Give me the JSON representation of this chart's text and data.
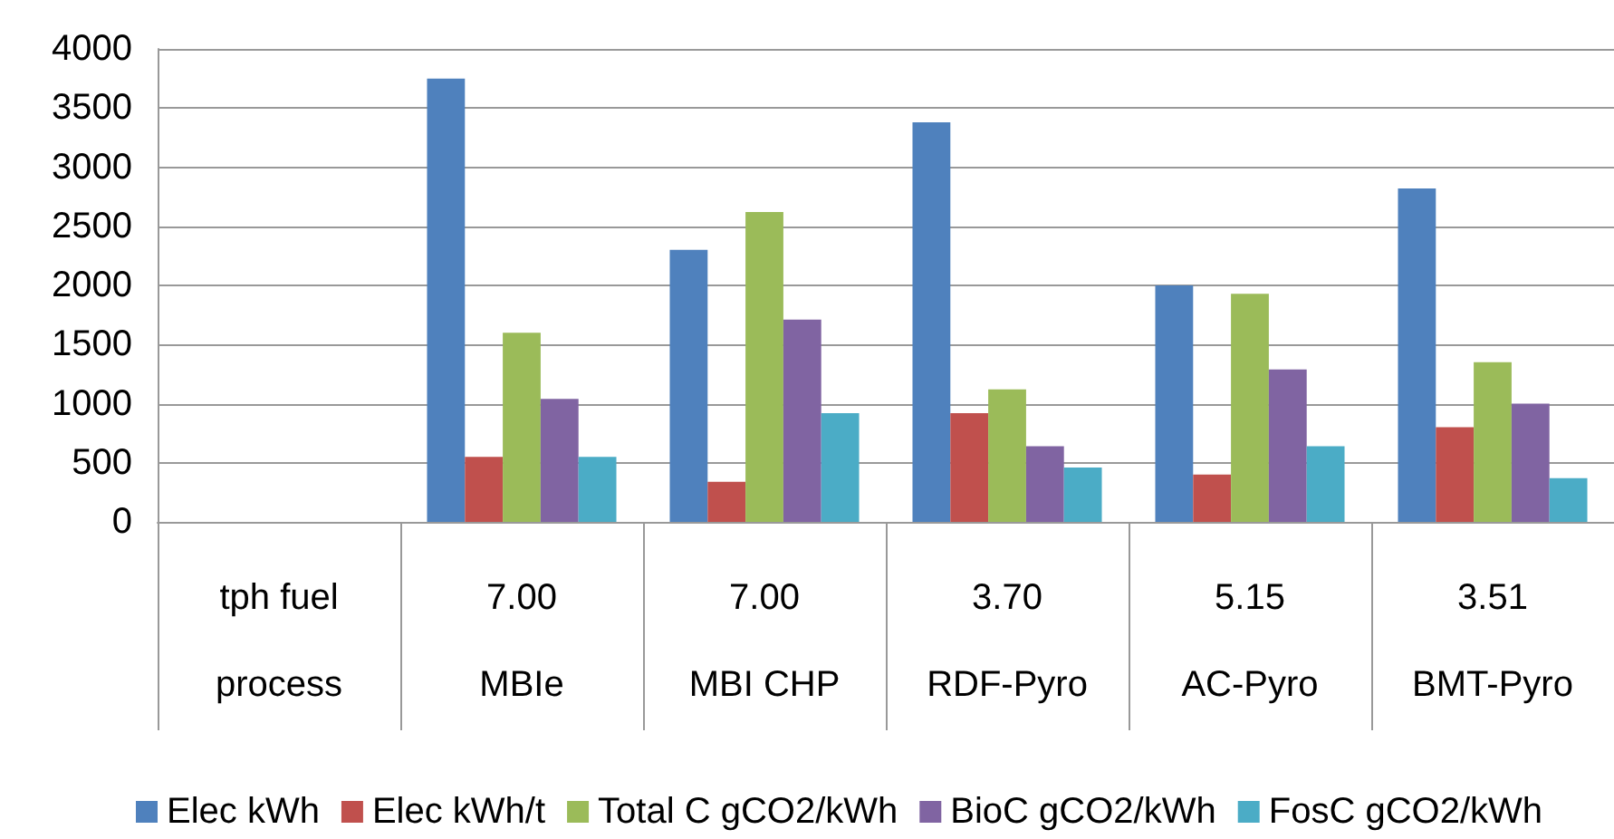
{
  "chart_data": {
    "type": "bar",
    "categories": [
      "tph fuel\nprocess",
      "7.00\nMBIe",
      "7.00\nMBI CHP",
      "3.70\nRDF-Pyro",
      "5.15\nAC-Pyro",
      "3.51\nBMT-Pyro"
    ],
    "series": [
      {
        "name": "Elec kWh",
        "color": "#4f81bd",
        "values": [
          null,
          3750,
          2300,
          3380,
          2000,
          2820
        ]
      },
      {
        "name": "Elec kWh/t",
        "color": "#c0504d",
        "values": [
          null,
          550,
          340,
          920,
          400,
          800
        ]
      },
      {
        "name": "Total C gCO2/kWh",
        "color": "#9bbb59",
        "values": [
          null,
          1600,
          2620,
          1120,
          1930,
          1350
        ]
      },
      {
        "name": "BioC gCO2/kWh",
        "color": "#8064a2",
        "values": [
          null,
          1040,
          1710,
          640,
          1290,
          1000
        ]
      },
      {
        "name": "FosC gCO2/kWh",
        "color": "#4bacc6",
        "values": [
          null,
          550,
          920,
          460,
          640,
          370
        ]
      }
    ],
    "ylim": [
      0,
      4000
    ],
    "yticks": [
      0,
      500,
      1000,
      1500,
      2000,
      2500,
      3000,
      3500,
      4000
    ],
    "grid": "y",
    "legend": "bottom"
  }
}
